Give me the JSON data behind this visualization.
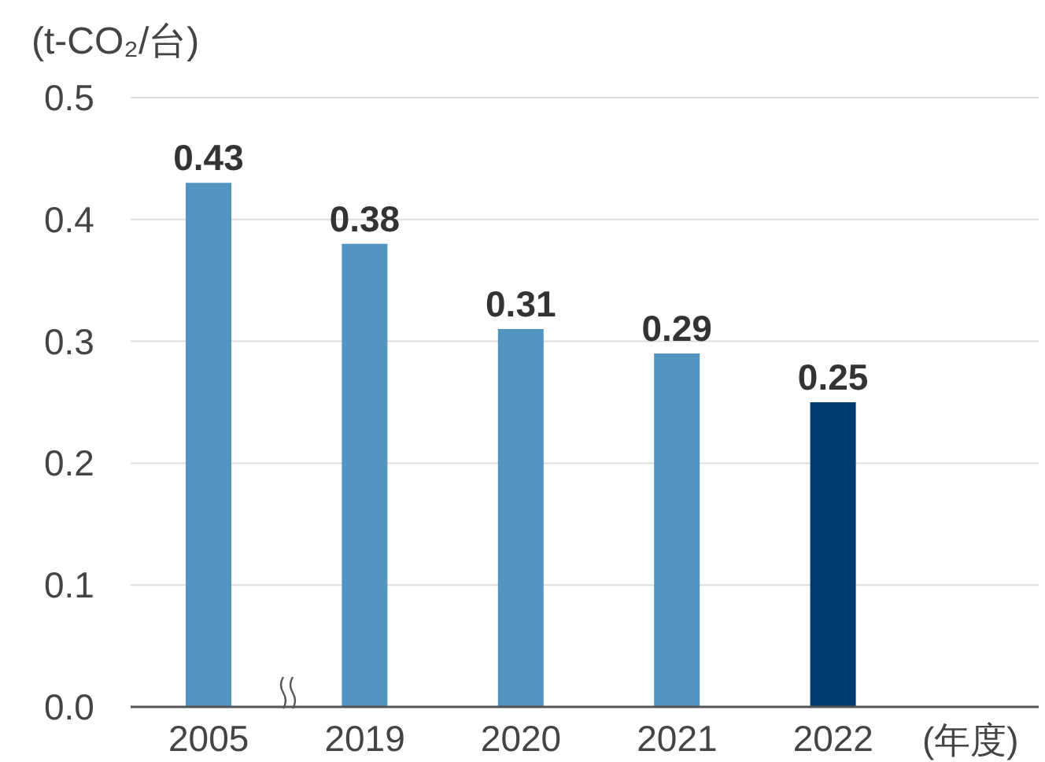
{
  "chart_data": {
    "type": "bar",
    "ylabel": "(t-CO₂/台)",
    "xlabel": "(年度)",
    "categories": [
      "2005",
      "2019",
      "2020",
      "2021",
      "2022"
    ],
    "values": [
      0.43,
      0.38,
      0.31,
      0.29,
      0.25
    ],
    "colors": [
      "#5295c0",
      "#5295c0",
      "#5295c0",
      "#5295c0",
      "#003a70"
    ],
    "ylim": [
      0,
      0.5
    ],
    "yticks": [
      {
        "value": 0,
        "label": "0.0"
      },
      0.1,
      0.2,
      0.3,
      0.4,
      0.5
    ],
    "grid": "y",
    "data_labels": true
  }
}
